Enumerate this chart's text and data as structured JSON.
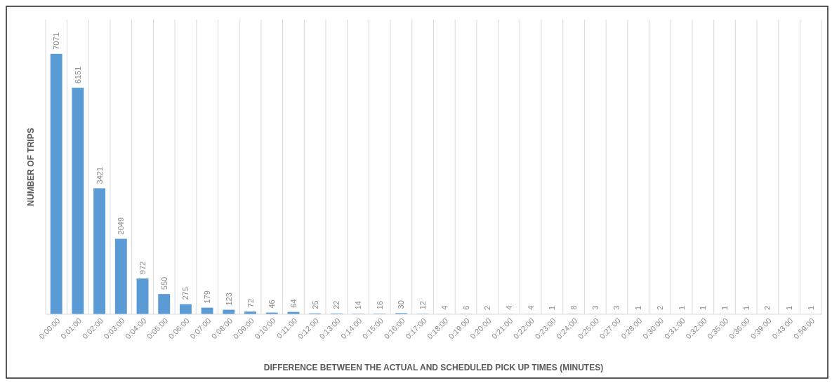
{
  "chart_data": {
    "type": "bar",
    "xlabel": "DIFFERENCE BETWEEN THE ACTUAL AND SCHEDULED PICK UP TIMES (MINUTES)",
    "ylabel": "NUMBER OF TRIPS",
    "categories": [
      "0:00:00",
      "0:01:00",
      "0:02:00",
      "0:03:00",
      "0:04:00",
      "0:05:00",
      "0:06:00",
      "0:07:00",
      "0:08:00",
      "0:09:00",
      "0:10:00",
      "0:11:00",
      "0:12:00",
      "0:13:00",
      "0:14:00",
      "0:15:00",
      "0:16:00",
      "0:17:00",
      "0:18:00",
      "0:19:00",
      "0:20:00",
      "0:21:00",
      "0:22:00",
      "0:23:00",
      "0:24:00",
      "0:25:00",
      "0:27:00",
      "0:28:00",
      "0:30:00",
      "0:31:00",
      "0:32:00",
      "0:35:00",
      "0:36:00",
      "0:39:00",
      "0:43:00",
      "0:59:00"
    ],
    "values": [
      7071,
      6151,
      3421,
      2049,
      972,
      550,
      275,
      179,
      123,
      72,
      46,
      64,
      25,
      22,
      14,
      16,
      30,
      12,
      4,
      6,
      2,
      4,
      4,
      1,
      8,
      3,
      3,
      1,
      2,
      1,
      1,
      1,
      1,
      2,
      1,
      1
    ],
    "color": "#5b9bd5",
    "ylim": [
      0,
      8000
    ],
    "tick_labels": "x",
    "grid": "x",
    "data_labels": true
  }
}
